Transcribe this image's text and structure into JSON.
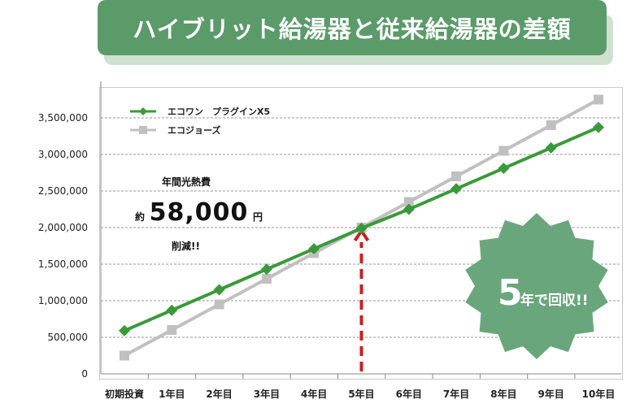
{
  "banner": {
    "title": "ハイブリット給湯器と従来給湯器の差額"
  },
  "callout": {
    "line1": "年間光熱費",
    "prefix": "約",
    "amount": "58,000",
    "suffix": "円",
    "line3": "削減!!"
  },
  "badge": {
    "number": "5",
    "text": "年で回収!!"
  },
  "colors": {
    "green": "#3a9a3a",
    "gray": "#c0c0c0",
    "banner": "#5b9b6a",
    "badge": "#6aa67c",
    "arrow": "#cc1f1f"
  },
  "chart_data": {
    "type": "line",
    "categories": [
      "初期投資",
      "1年目",
      "2年目",
      "3年目",
      "4年目",
      "5年目",
      "6年目",
      "7年目",
      "8年目",
      "9年目",
      "10年目"
    ],
    "series": [
      {
        "name": "エコワン　プラグインX5",
        "color": "#3a9a3a",
        "marker": "diamond",
        "values": [
          590000,
          870000,
          1150000,
          1430000,
          1710000,
          1990000,
          2250000,
          2530000,
          2810000,
          3090000,
          3370000
        ]
      },
      {
        "name": "エコジョーズ",
        "color": "#c0c0c0",
        "marker": "square",
        "values": [
          250000,
          600000,
          950000,
          1300000,
          1650000,
          2000000,
          2350000,
          2700000,
          3050000,
          3400000,
          3750000
        ]
      }
    ],
    "y_ticks": [
      "0",
      "500,000",
      "1,000,000",
      "1,500,000",
      "2,000,000",
      "2,500,000",
      "3,000,000",
      "3,500,000"
    ],
    "ylim": [
      0,
      4000000
    ],
    "grid": true,
    "legend": "top-left",
    "marker_line_at": "5年目"
  }
}
